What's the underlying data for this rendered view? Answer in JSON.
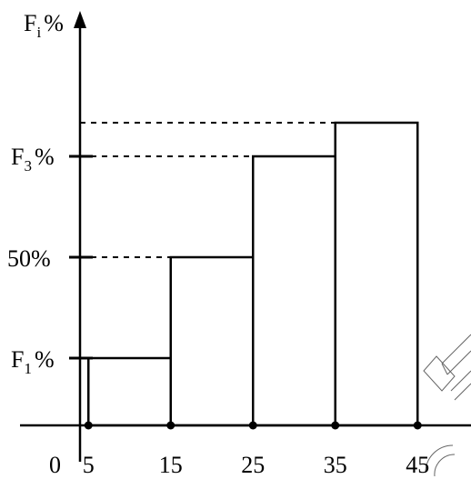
{
  "chart_data": {
    "type": "bar",
    "x_axis": {
      "origin_label": "0",
      "tick_values": [
        5,
        15,
        25,
        35,
        45
      ],
      "tick_labels": [
        "5",
        "15",
        "25",
        "35",
        "45"
      ]
    },
    "y_axis": {
      "label_main": "F",
      "label_sub": "i",
      "label_unit": "%",
      "ticks": [
        {
          "main": "F",
          "sub": "1",
          "unit": "%",
          "level": 1
        },
        {
          "main": "50%",
          "sub": "",
          "unit": "",
          "level": 2
        },
        {
          "main": "F",
          "sub": "3",
          "unit": "%",
          "level": 3
        }
      ]
    },
    "bars": [
      {
        "x0": 5,
        "x1": 15,
        "level": 1
      },
      {
        "x0": 15,
        "x1": 25,
        "level": 2
      },
      {
        "x0": 25,
        "x1": 35,
        "level": 3
      },
      {
        "x0": 35,
        "x1": 45,
        "level": 4
      }
    ],
    "dashed_guides": [
      1,
      2,
      3,
      4
    ],
    "axis_markers": [
      5,
      15,
      25,
      35,
      45
    ]
  },
  "colors": {
    "line": "#000000",
    "background": "#ffffff",
    "watermark": "#555555"
  }
}
